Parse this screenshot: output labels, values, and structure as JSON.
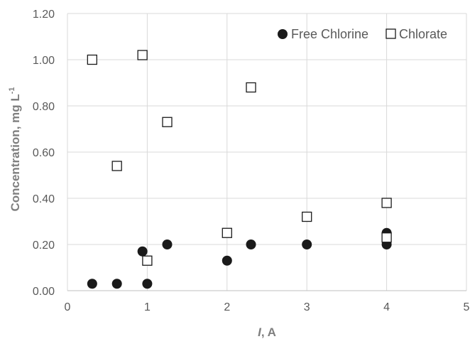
{
  "chart_data": {
    "type": "scatter",
    "title": "",
    "xlabel_italic": "I",
    "xlabel_rest": ", A",
    "ylabel_main": "Concentration, mg L",
    "ylabel_sup": "-1",
    "xlim": [
      0,
      5
    ],
    "ylim": [
      0,
      1.2
    ],
    "x_ticks": [
      "0",
      "1",
      "2",
      "3",
      "4",
      "5"
    ],
    "y_ticks": [
      "0.00",
      "0.20",
      "0.40",
      "0.60",
      "0.80",
      "1.00",
      "1.20"
    ],
    "grid": true,
    "legend_position": "top-right",
    "series": [
      {
        "name": "Free Chlorine",
        "marker": "filled-circle",
        "color": "#1a1a1a",
        "points": [
          [
            0.31,
            0.03
          ],
          [
            0.62,
            0.03
          ],
          [
            0.94,
            0.17
          ],
          [
            1.0,
            0.03
          ],
          [
            1.25,
            0.2
          ],
          [
            2.0,
            0.13
          ],
          [
            2.3,
            0.2
          ],
          [
            3.0,
            0.2
          ],
          [
            4.0,
            0.25
          ],
          [
            4.0,
            0.2
          ]
        ]
      },
      {
        "name": "Chlorate",
        "marker": "open-square",
        "color": "#1a1a1a",
        "points": [
          [
            0.31,
            1.0
          ],
          [
            0.62,
            0.54
          ],
          [
            0.94,
            1.02
          ],
          [
            1.0,
            0.13
          ],
          [
            1.25,
            0.73
          ],
          [
            2.0,
            0.25
          ],
          [
            2.3,
            0.88
          ],
          [
            3.0,
            0.32
          ],
          [
            4.0,
            0.38
          ],
          [
            4.0,
            0.23
          ]
        ]
      }
    ]
  }
}
